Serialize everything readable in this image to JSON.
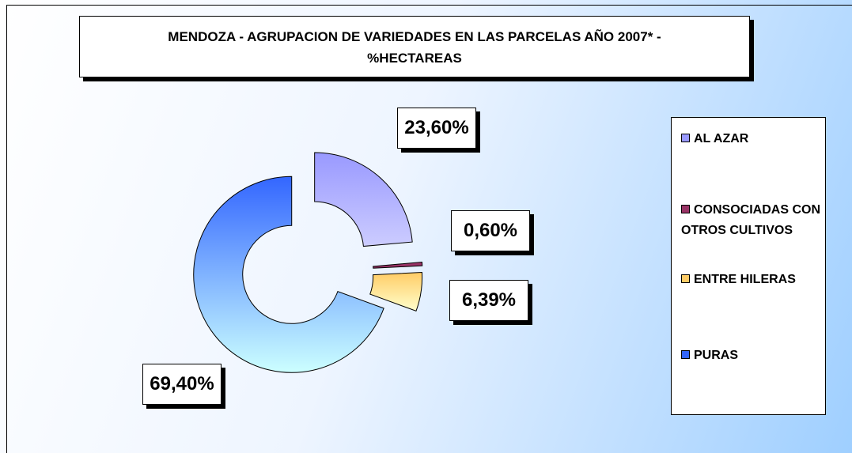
{
  "chart_data": {
    "type": "pie",
    "donut": true,
    "title": "MENDOZA - AGRUPACION DE VARIEDADES EN LAS PARCELAS  AÑO 2007* - %HECTAREAS",
    "categories": [
      "AL AZAR",
      "CONSOCIADAS CON OTROS CULTIVOS",
      "ENTRE HILERAS",
      "PURAS"
    ],
    "values": [
      23.6,
      0.6,
      6.39,
      69.4
    ],
    "value_labels": [
      "23,60%",
      "0,60%",
      "6,39%",
      "69,40%"
    ],
    "colors": [
      [
        "#9999ff",
        "#ccccff"
      ],
      [
        "#993366",
        "#993366"
      ],
      [
        "#ffcc66",
        "#ffffcc"
      ],
      [
        "#3366ff",
        "#ccffff"
      ]
    ]
  }
}
